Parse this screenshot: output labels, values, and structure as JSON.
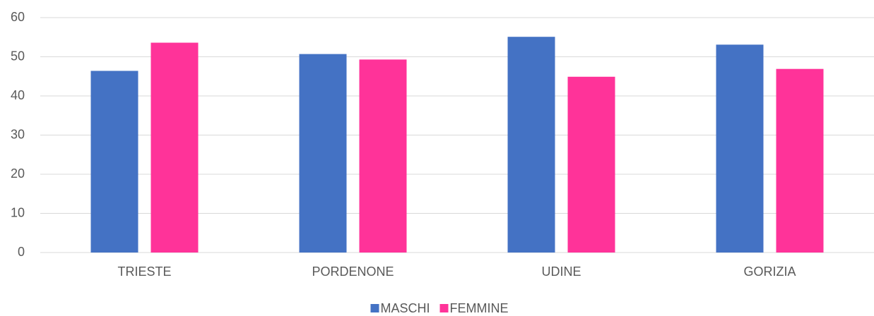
{
  "chart_data": {
    "type": "bar",
    "categories": [
      "TRIESTE",
      "PORDENONE",
      "UDINE",
      "GORIZIA"
    ],
    "series": [
      {
        "name": "MASCHI",
        "color": "#4472c4",
        "values": [
          46.4,
          50.7,
          55.1,
          53.1
        ]
      },
      {
        "name": "FEMMINE",
        "color": "#ff3399",
        "values": [
          53.6,
          49.3,
          44.9,
          46.9
        ]
      }
    ],
    "ylim": [
      0,
      60
    ],
    "yticks": [
      0,
      10,
      20,
      30,
      40,
      50,
      60
    ],
    "grid": true,
    "legend": "bottom"
  }
}
